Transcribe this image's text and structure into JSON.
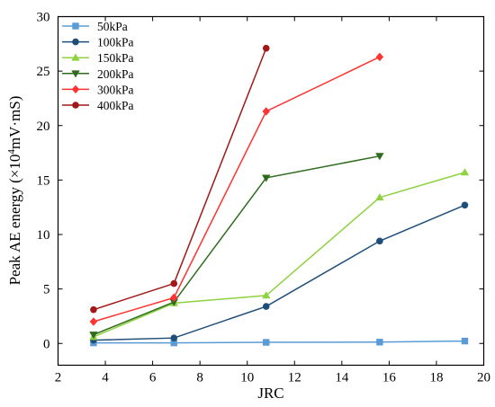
{
  "chart_data": {
    "type": "line",
    "xlabel": "JRC",
    "ylabel": {
      "prefix": "Peak AE energy (×10",
      "sup": "4",
      "suffix": "mV·mS)"
    },
    "xlim": [
      2,
      20
    ],
    "ylim": [
      -2,
      30
    ],
    "xticks": [
      2,
      4,
      6,
      8,
      10,
      12,
      14,
      16,
      18,
      20
    ],
    "yticks": [
      0,
      5,
      10,
      15,
      20,
      25,
      30
    ],
    "grid": false,
    "legend_position": "top-left",
    "series": [
      {
        "name": "50kPa",
        "color": "#5b9bd5",
        "marker": "square",
        "x": [
          3.5,
          6.9,
          10.8,
          15.6,
          19.2
        ],
        "y": [
          0.05,
          0.05,
          0.1,
          0.12,
          0.22
        ]
      },
      {
        "name": "100kPa",
        "color": "#1f4e79",
        "marker": "circle",
        "x": [
          3.5,
          6.9,
          10.8,
          15.6,
          19.2
        ],
        "y": [
          0.3,
          0.5,
          3.4,
          9.4,
          12.7
        ]
      },
      {
        "name": "150kPa",
        "color": "#8fd13f",
        "marker": "triangle-up",
        "x": [
          3.5,
          6.9,
          10.8,
          15.6,
          19.2
        ],
        "y": [
          0.6,
          3.7,
          4.4,
          13.4,
          15.7
        ]
      },
      {
        "name": "200kPa",
        "color": "#2e6b1f",
        "marker": "triangle-down",
        "x": [
          3.5,
          6.9,
          10.8,
          15.6
        ],
        "y": [
          0.8,
          3.8,
          15.2,
          17.2
        ]
      },
      {
        "name": "300kPa",
        "color": "#ff3333",
        "marker": "diamond",
        "x": [
          3.5,
          6.9,
          10.8,
          15.6
        ],
        "y": [
          2.0,
          4.2,
          21.3,
          26.3
        ]
      },
      {
        "name": "400kPa",
        "color": "#a01818",
        "marker": "circle",
        "x": [
          3.5,
          6.9,
          10.8
        ],
        "y": [
          3.1,
          5.5,
          27.1
        ]
      }
    ]
  }
}
